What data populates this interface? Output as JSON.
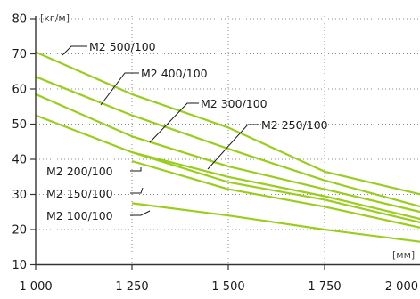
{
  "chart_data": {
    "type": "line",
    "title": "",
    "xlabel": "",
    "ylabel": "",
    "x_unit": "[мм]",
    "y_unit": "[кг/м]",
    "xlim": [
      1000,
      2000
    ],
    "ylim": [
      10,
      80
    ],
    "x_ticks": [
      {
        "value": 1000,
        "label": "1 000"
      },
      {
        "value": 1250,
        "label": "1 250"
      },
      {
        "value": 1500,
        "label": "1 500"
      },
      {
        "value": 1750,
        "label": "1 750"
      },
      {
        "value": 2000,
        "label": "2 000"
      }
    ],
    "y_ticks": [
      {
        "value": 10,
        "label": "10"
      },
      {
        "value": 20,
        "label": "20"
      },
      {
        "value": 30,
        "label": "30"
      },
      {
        "value": 40,
        "label": "40"
      },
      {
        "value": 50,
        "label": "50"
      },
      {
        "value": 60,
        "label": "60"
      },
      {
        "value": 70,
        "label": "70"
      },
      {
        "value": 80,
        "label": "80"
      }
    ],
    "grid": "dotted",
    "line_color": "#9acd1e",
    "series": [
      {
        "name": "M2 500/100",
        "x": [
          1000,
          1250,
          1500,
          1750,
          2000
        ],
        "y": [
          70.5,
          58.5,
          49,
          36.5,
          30
        ]
      },
      {
        "name": "M2 400/100",
        "x": [
          1000,
          1250,
          1500,
          1750,
          2000
        ],
        "y": [
          63.5,
          52.5,
          43,
          34,
          26.5
        ]
      },
      {
        "name": "M2 300/100",
        "x": [
          1000,
          1250,
          1500,
          1750,
          2000
        ],
        "y": [
          58.5,
          46.5,
          38,
          31.5,
          25
        ]
      },
      {
        "name": "M2 250/100",
        "x": [
          1000,
          1250,
          1500,
          1750,
          2000
        ],
        "y": [
          52.5,
          42,
          35,
          29.5,
          23
        ]
      },
      {
        "name": "M2 200/100",
        "x": [
          1250,
          1500,
          1750,
          2000
        ],
        "y": [
          42,
          33.5,
          28.5,
          22
        ]
      },
      {
        "name": "M2 150/100",
        "x": [
          1250,
          1500,
          1750,
          2000
        ],
        "y": [
          39.5,
          31.5,
          26.5,
          20.5
        ]
      },
      {
        "name": "M2 100/100",
        "x": [
          1250,
          1500,
          1750,
          2000
        ],
        "y": [
          27.5,
          24,
          20,
          16.5
        ]
      }
    ]
  }
}
